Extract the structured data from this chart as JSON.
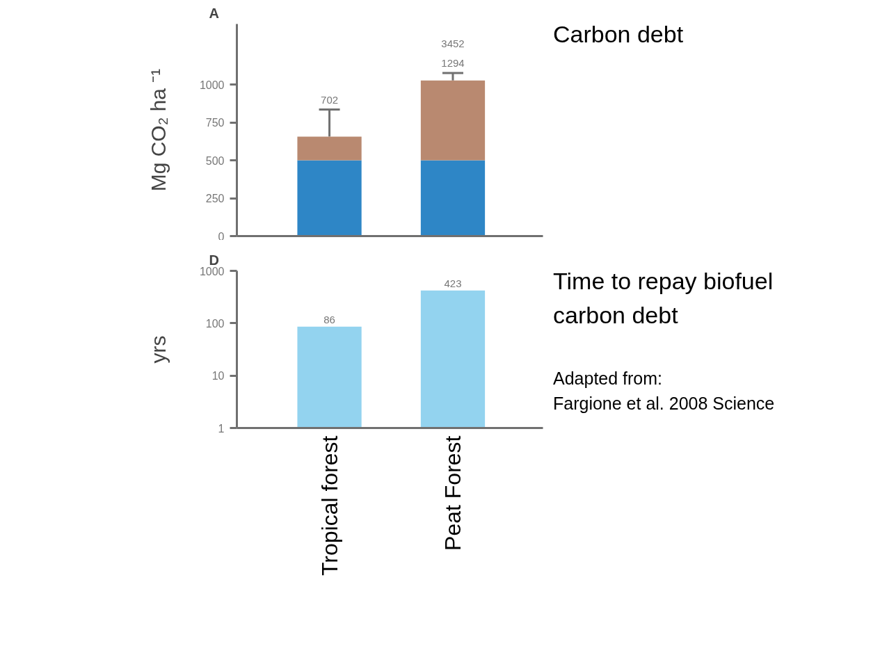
{
  "chart_data": [
    {
      "type": "bar",
      "title": "A",
      "ylabel": "Mg CO₂ ha ⁻¹",
      "categories": [
        null,
        null
      ],
      "stacked": true,
      "series": [
        {
          "color": "#2e86c6",
          "values": [
            500,
            500
          ]
        },
        {
          "color": "#b98970",
          "values": [
            156,
            527
          ],
          "errors": [
            [
              656,
              835
            ],
            [
              1027,
              1076
            ]
          ]
        }
      ],
      "ylim": [
        0,
        1400
      ],
      "yticks": [
        0,
        250,
        500,
        750,
        1000
      ],
      "grid": false,
      "annotations": [
        "702",
        "1294",
        "3452",
        "Carbon debt"
      ]
    },
    {
      "type": "bar",
      "title": "D",
      "ylabel": "yrs",
      "categories": [
        "Tropical forest",
        "Peat Forest"
      ],
      "series": [
        {
          "color": "#93d3ef",
          "values": [
            86,
            423
          ]
        }
      ],
      "log": true,
      "ylim": [
        1,
        1000
      ],
      "yticks": [
        1,
        10,
        100,
        1000
      ],
      "data_labels": true,
      "grid": false,
      "annotations": [
        "Time to repay biofuel\ncarbon debt",
        "Adapted from:\nFargione et al. 2008 Science"
      ]
    }
  ]
}
